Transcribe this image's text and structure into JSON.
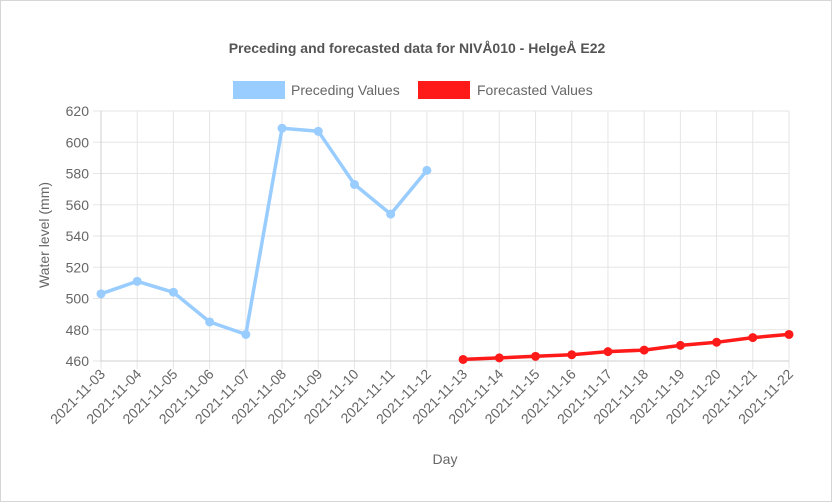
{
  "chart_data": {
    "type": "line",
    "title": "Preceding and forecasted data for NIVÅ010 - HelgeÅ E22",
    "xlabel": "Day",
    "ylabel": "Water level (mm)",
    "ylim": [
      460,
      620
    ],
    "yticks": [
      460,
      480,
      500,
      520,
      540,
      560,
      580,
      600,
      620
    ],
    "grid": true,
    "legend_position": "top-center",
    "categories": [
      "2021-11-03",
      "2021-11-04",
      "2021-11-05",
      "2021-11-06",
      "2021-11-07",
      "2021-11-08",
      "2021-11-09",
      "2021-11-10",
      "2021-11-11",
      "2021-11-12",
      "2021-11-13",
      "2021-11-14",
      "2021-11-15",
      "2021-11-16",
      "2021-11-17",
      "2021-11-18",
      "2021-11-19",
      "2021-11-20",
      "2021-11-21",
      "2021-11-22"
    ],
    "series": [
      {
        "name": "Preceding Values",
        "color": "#99ccff",
        "values": [
          503,
          511,
          504,
          485,
          477,
          609,
          607,
          573,
          554,
          582,
          null,
          null,
          null,
          null,
          null,
          null,
          null,
          null,
          null,
          null
        ]
      },
      {
        "name": "Forecasted Values",
        "color": "#ff1a1a",
        "values": [
          null,
          null,
          null,
          null,
          null,
          null,
          null,
          null,
          null,
          null,
          461,
          462,
          463,
          464,
          466,
          467,
          470,
          472,
          475,
          477
        ]
      }
    ]
  }
}
